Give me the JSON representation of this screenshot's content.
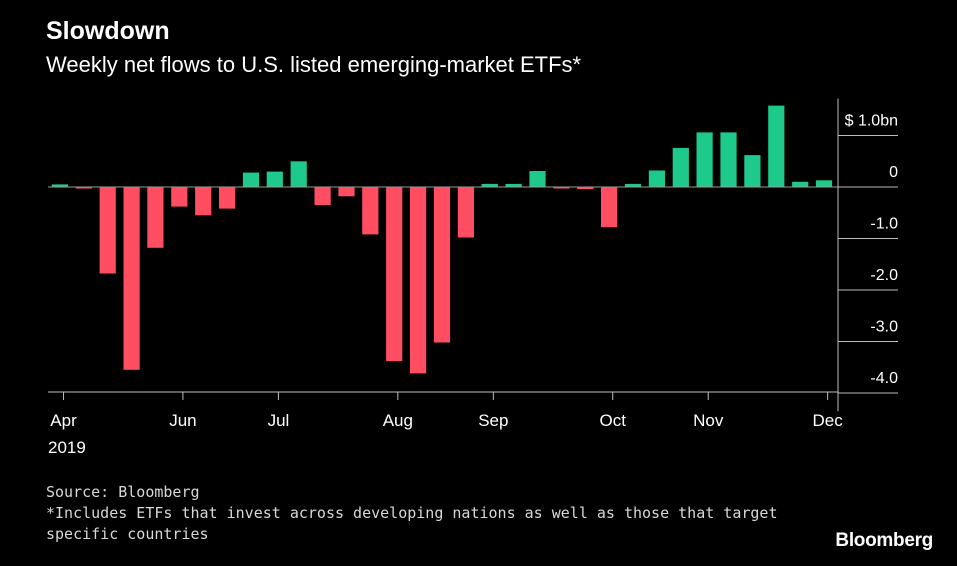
{
  "chart_data": {
    "type": "bar",
    "title": "Slowdown",
    "subtitle": "Weekly net flows to U.S. listed emerging-market ETFs*",
    "y_unit_label": "$ 1.0bn",
    "y_ticks": [
      1.0,
      0,
      -1.0,
      -2.0,
      -3.0,
      -4.0
    ],
    "y_tick_labels": [
      "$ 1.0bn",
      "0",
      "-1.0",
      "-2.0",
      "-3.0",
      "-4.0"
    ],
    "ylim": [
      -4.2,
      1.6
    ],
    "x_labels": [
      {
        "label": "Apr",
        "week": 0
      },
      {
        "label": "Jun",
        "week": 5
      },
      {
        "label": "Jul",
        "week": 9
      },
      {
        "label": "Aug",
        "week": 14
      },
      {
        "label": "Sep",
        "week": 18
      },
      {
        "label": "Oct",
        "week": 23
      },
      {
        "label": "Nov",
        "week": 27
      },
      {
        "label": "Dec",
        "week": 32
      }
    ],
    "x_year_label": "2019",
    "grid": false,
    "positive_color": "#1ec98c",
    "negative_color": "#ff4d62",
    "values": [
      0.05,
      -0.02,
      -1.68,
      -3.55,
      -1.18,
      -0.38,
      -0.55,
      -0.42,
      0.28,
      0.3,
      0.5,
      -0.35,
      -0.18,
      -0.92,
      -3.38,
      -3.62,
      -3.02,
      -0.98,
      0.06,
      0.06,
      0.31,
      -0.02,
      -0.04,
      -0.78,
      0.06,
      0.32,
      0.76,
      1.06,
      1.06,
      0.62,
      1.58,
      0.1,
      0.13
    ]
  },
  "footer": {
    "source": "Source: Bloomberg",
    "note": "*Includes ETFs that invest across developing nations as well as those that target specific countries",
    "brand": "Bloomberg"
  }
}
